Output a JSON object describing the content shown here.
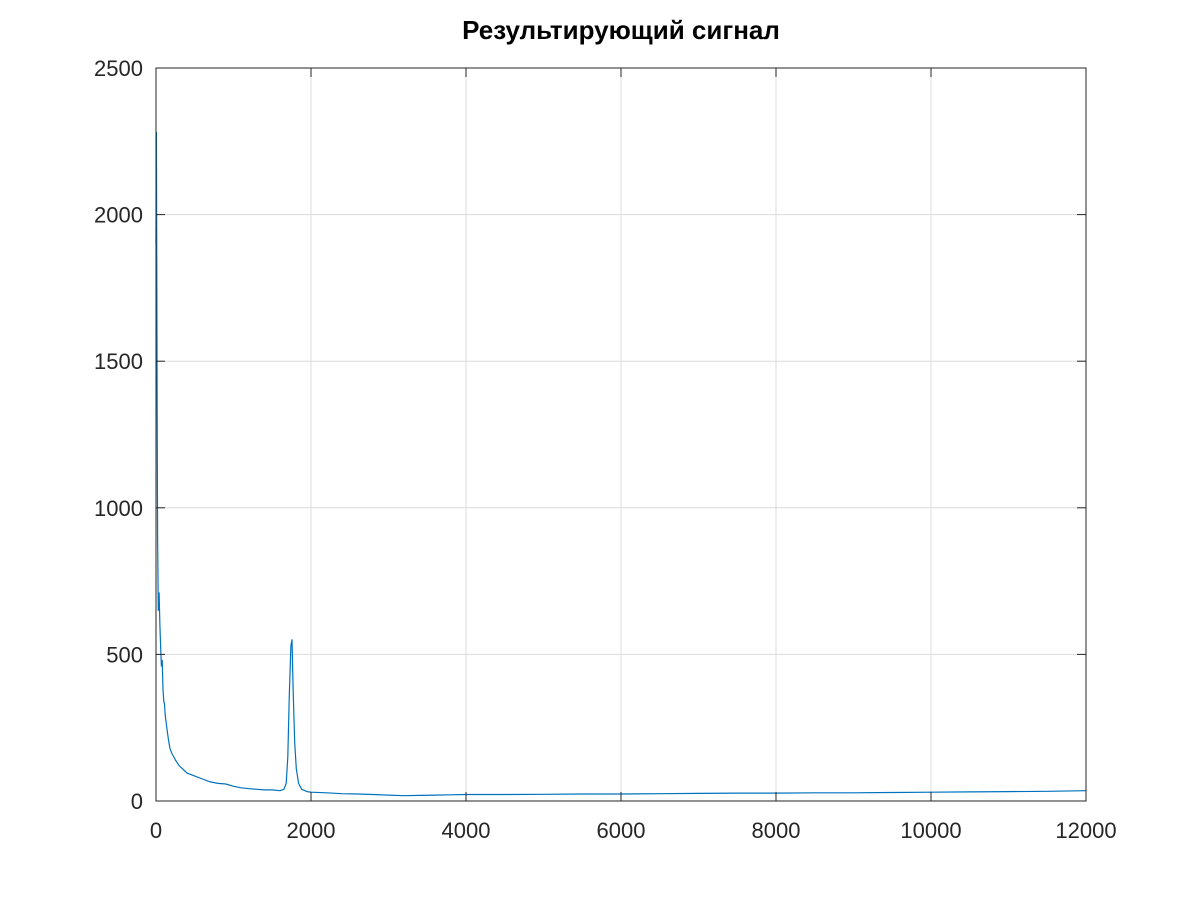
{
  "chart_data": {
    "type": "line",
    "title": "Результирующий сигнал",
    "xlabel": "",
    "ylabel": "",
    "xlim": [
      0,
      12000
    ],
    "ylim": [
      0,
      2500
    ],
    "x_ticks": [
      0,
      2000,
      4000,
      6000,
      8000,
      10000,
      12000
    ],
    "x_tick_labels": [
      "0",
      "2000",
      "4000",
      "6000",
      "8000",
      "10000",
      "12000"
    ],
    "y_ticks": [
      0,
      500,
      1000,
      1500,
      2000,
      2500
    ],
    "y_tick_labels": [
      "0",
      "500",
      "1000",
      "1500",
      "2000",
      "2500"
    ],
    "grid": true,
    "legend": "none",
    "series": [
      {
        "color": "#0072bd",
        "x": [
          0,
          5,
          10,
          15,
          20,
          30,
          40,
          50,
          60,
          70,
          80,
          90,
          100,
          110,
          120,
          140,
          160,
          180,
          200,
          250,
          300,
          350,
          400,
          500,
          600,
          700,
          800,
          900,
          1000,
          1100,
          1200,
          1300,
          1400,
          1500,
          1600,
          1650,
          1680,
          1700,
          1720,
          1740,
          1755,
          1770,
          1790,
          1810,
          1840,
          1880,
          1950,
          2000,
          2200,
          2400,
          2600,
          2800,
          3000,
          3200,
          3400,
          3600,
          3800,
          4000,
          4500,
          5000,
          5500,
          6000,
          6500,
          7000,
          7500,
          8000,
          8500,
          9000,
          9500,
          10000,
          10500,
          11000,
          11500,
          12000
        ],
        "y": [
          1900,
          2280,
          1800,
          1300,
          900,
          650,
          710,
          600,
          520,
          460,
          480,
          380,
          340,
          330,
          290,
          250,
          210,
          180,
          165,
          140,
          120,
          108,
          95,
          85,
          75,
          65,
          60,
          58,
          50,
          45,
          42,
          40,
          38,
          38,
          35,
          40,
          60,
          150,
          360,
          530,
          550,
          370,
          200,
          110,
          60,
          40,
          32,
          30,
          28,
          25,
          24,
          22,
          20,
          18,
          19,
          20,
          21,
          22,
          22,
          23,
          24,
          24,
          25,
          26,
          27,
          27,
          28,
          28,
          29,
          30,
          31,
          32,
          33,
          35
        ]
      }
    ]
  }
}
